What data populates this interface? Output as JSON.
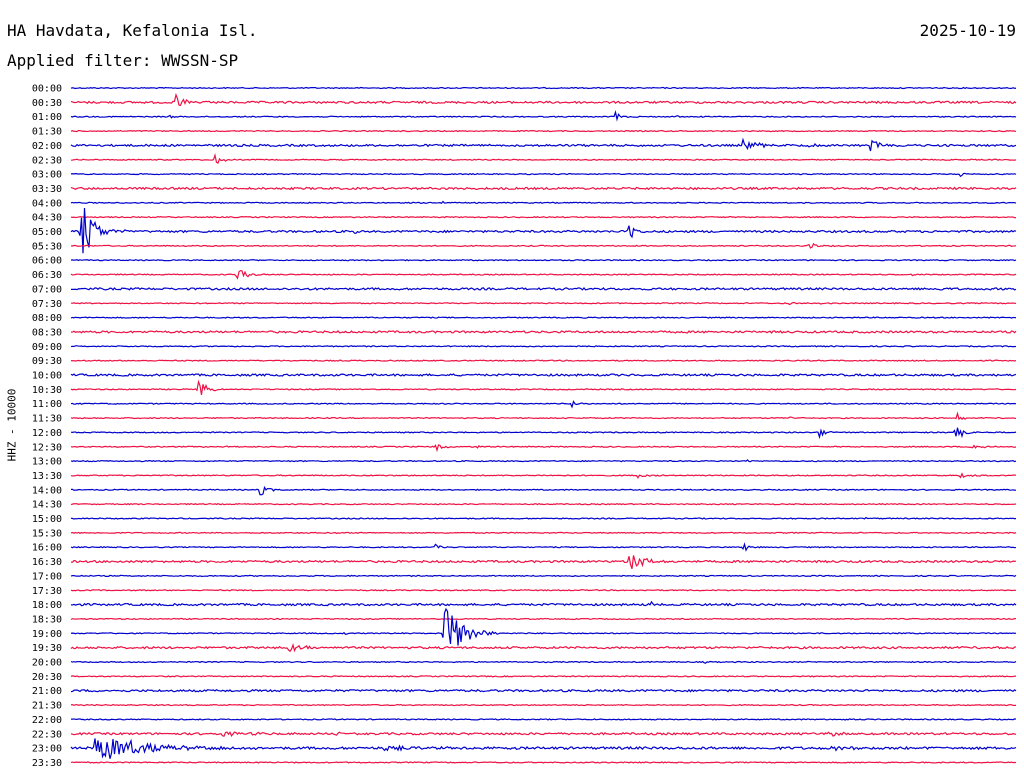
{
  "header": {
    "station": "HA Havdata, Kefalonia Isl.",
    "date": "2025-10-19",
    "filter_label": "Applied filter: WWSSN-SP"
  },
  "chart_data": {
    "type": "line",
    "title": "HA Havdata, Kefalonia Isl.",
    "subtitle": "Applied filter: WWSSN-SP",
    "date": "2025-10-19",
    "ylabel": "HHZ - 10000",
    "xlabel": "",
    "grid": false,
    "colors": {
      "blue": "#0000cc",
      "red": "#ee1144"
    },
    "series_colors": [
      "blue",
      "red"
    ],
    "row_interval_minutes": 30,
    "rows": [
      {
        "label": "00:00",
        "color": "blue",
        "noise": 0.5,
        "events": []
      },
      {
        "label": "00:30",
        "color": "red",
        "noise": 1.0,
        "events": [
          {
            "x": 0.11,
            "amp": 9,
            "dur": 0.01
          }
        ]
      },
      {
        "label": "01:00",
        "color": "blue",
        "noise": 0.5,
        "events": [
          {
            "x": 0.105,
            "amp": 4,
            "dur": 0.003
          },
          {
            "x": 0.575,
            "amp": 5,
            "dur": 0.006
          },
          {
            "x": 0.64,
            "amp": 2,
            "dur": 0.004
          }
        ]
      },
      {
        "label": "01:30",
        "color": "red",
        "noise": 0.5,
        "events": []
      },
      {
        "label": "02:00",
        "color": "blue",
        "noise": 1.0,
        "events": [
          {
            "x": 0.45,
            "amp": 2,
            "dur": 0.003
          },
          {
            "x": 0.71,
            "amp": 7,
            "dur": 0.012
          },
          {
            "x": 0.78,
            "amp": 3,
            "dur": 0.005
          },
          {
            "x": 0.846,
            "amp": 7,
            "dur": 0.009
          }
        ]
      },
      {
        "label": "02:30",
        "color": "red",
        "noise": 0.5,
        "events": [
          {
            "x": 0.152,
            "amp": 7,
            "dur": 0.006
          }
        ]
      },
      {
        "label": "03:00",
        "color": "blue",
        "noise": 0.5,
        "events": [
          {
            "x": 0.941,
            "amp": 4,
            "dur": 0.004
          }
        ]
      },
      {
        "label": "03:30",
        "color": "red",
        "noise": 1.0,
        "events": []
      },
      {
        "label": "04:00",
        "color": "blue",
        "noise": 0.5,
        "events": [
          {
            "x": 0.392,
            "amp": 2,
            "dur": 0.003
          }
        ]
      },
      {
        "label": "04:30",
        "color": "red",
        "noise": 0.5,
        "events": []
      },
      {
        "label": "05:00",
        "color": "blue",
        "noise": 1.0,
        "events": [
          {
            "x": 0.01,
            "amp": 40,
            "dur": 0.012
          },
          {
            "x": 0.59,
            "amp": 13,
            "dur": 0.006
          },
          {
            "x": 0.3,
            "amp": 2,
            "dur": 0.004
          }
        ]
      },
      {
        "label": "05:30",
        "color": "red",
        "noise": 0.5,
        "events": [
          {
            "x": 0.78,
            "amp": 4,
            "dur": 0.01
          }
        ]
      },
      {
        "label": "06:00",
        "color": "blue",
        "noise": 0.5,
        "events": []
      },
      {
        "label": "06:30",
        "color": "red",
        "noise": 0.5,
        "events": [
          {
            "x": 0.175,
            "amp": 7,
            "dur": 0.009
          },
          {
            "x": 0.89,
            "amp": 2,
            "dur": 0.003
          }
        ]
      },
      {
        "label": "07:00",
        "color": "blue",
        "noise": 1.0,
        "events": [
          {
            "x": 0.912,
            "amp": 4,
            "dur": 0.006
          }
        ]
      },
      {
        "label": "07:30",
        "color": "red",
        "noise": 0.5,
        "events": [
          {
            "x": 0.76,
            "amp": 2,
            "dur": 0.006
          },
          {
            "x": 0.79,
            "amp": 2,
            "dur": 0.004
          }
        ]
      },
      {
        "label": "08:00",
        "color": "blue",
        "noise": 0.5,
        "events": []
      },
      {
        "label": "08:30",
        "color": "red",
        "noise": 1.0,
        "events": []
      },
      {
        "label": "09:00",
        "color": "blue",
        "noise": 0.5,
        "events": []
      },
      {
        "label": "09:30",
        "color": "red",
        "noise": 0.5,
        "events": []
      },
      {
        "label": "10:00",
        "color": "blue",
        "noise": 1.0,
        "events": []
      },
      {
        "label": "10:30",
        "color": "red",
        "noise": 0.5,
        "events": [
          {
            "x": 0.134,
            "amp": 10,
            "dur": 0.01
          }
        ]
      },
      {
        "label": "11:00",
        "color": "blue",
        "noise": 0.5,
        "events": [
          {
            "x": 0.53,
            "amp": 4,
            "dur": 0.006
          }
        ]
      },
      {
        "label": "11:30",
        "color": "red",
        "noise": 0.5,
        "events": [
          {
            "x": 0.76,
            "amp": 2,
            "dur": 0.003
          },
          {
            "x": 0.938,
            "amp": 7,
            "dur": 0.004
          }
        ]
      },
      {
        "label": "12:00",
        "color": "blue",
        "noise": 0.5,
        "events": [
          {
            "x": 0.79,
            "amp": 7,
            "dur": 0.006
          },
          {
            "x": 0.935,
            "amp": 9,
            "dur": 0.008
          }
        ]
      },
      {
        "label": "12:30",
        "color": "red",
        "noise": 0.5,
        "events": [
          {
            "x": 0.163,
            "amp": 3,
            "dur": 0.004
          },
          {
            "x": 0.386,
            "amp": 6,
            "dur": 0.006
          },
          {
            "x": 0.43,
            "amp": 2,
            "dur": 0.003
          },
          {
            "x": 0.953,
            "amp": 4,
            "dur": 0.008
          }
        ]
      },
      {
        "label": "13:00",
        "color": "blue",
        "noise": 0.5,
        "events": [
          {
            "x": 0.715,
            "amp": 2,
            "dur": 0.003
          }
        ]
      },
      {
        "label": "13:30",
        "color": "red",
        "noise": 0.5,
        "events": [
          {
            "x": 0.6,
            "amp": 2,
            "dur": 0.01
          },
          {
            "x": 0.94,
            "amp": 2,
            "dur": 0.012
          }
        ]
      },
      {
        "label": "14:00",
        "color": "blue",
        "noise": 0.5,
        "events": [
          {
            "x": 0.2,
            "amp": 6,
            "dur": 0.007
          }
        ]
      },
      {
        "label": "14:30",
        "color": "red",
        "noise": 0.5,
        "events": []
      },
      {
        "label": "15:00",
        "color": "blue",
        "noise": 0.5,
        "events": [
          {
            "x": 0.84,
            "amp": 2,
            "dur": 0.003
          }
        ]
      },
      {
        "label": "15:30",
        "color": "red",
        "noise": 0.5,
        "events": [
          {
            "x": 0.28,
            "amp": 2,
            "dur": 0.004
          }
        ]
      },
      {
        "label": "16:00",
        "color": "blue",
        "noise": 0.5,
        "events": [
          {
            "x": 0.385,
            "amp": 3,
            "dur": 0.008
          },
          {
            "x": 0.71,
            "amp": 7,
            "dur": 0.006
          }
        ]
      },
      {
        "label": "16:30",
        "color": "red",
        "noise": 1.0,
        "events": [
          {
            "x": 0.59,
            "amp": 11,
            "dur": 0.014
          }
        ]
      },
      {
        "label": "17:00",
        "color": "blue",
        "noise": 0.5,
        "events": []
      },
      {
        "label": "17:30",
        "color": "red",
        "noise": 0.5,
        "events": []
      },
      {
        "label": "18:00",
        "color": "blue",
        "noise": 1.0,
        "events": [
          {
            "x": 0.61,
            "amp": 4,
            "dur": 0.006
          }
        ]
      },
      {
        "label": "18:30",
        "color": "red",
        "noise": 0.5,
        "events": []
      },
      {
        "label": "19:00",
        "color": "blue",
        "noise": 0.5,
        "events": [
          {
            "x": 0.394,
            "amp": 38,
            "dur": 0.016
          },
          {
            "x": 0.29,
            "amp": 2,
            "dur": 0.003
          },
          {
            "x": 0.35,
            "amp": 2,
            "dur": 0.004
          }
        ]
      },
      {
        "label": "19:30",
        "color": "red",
        "noise": 1.0,
        "events": [
          {
            "x": 0.23,
            "amp": 5,
            "dur": 0.012
          }
        ]
      },
      {
        "label": "20:00",
        "color": "blue",
        "noise": 0.5,
        "events": [
          {
            "x": 0.67,
            "amp": 2,
            "dur": 0.003
          }
        ]
      },
      {
        "label": "20:30",
        "color": "red",
        "noise": 0.5,
        "events": []
      },
      {
        "label": "21:00",
        "color": "blue",
        "noise": 1.0,
        "events": []
      },
      {
        "label": "21:30",
        "color": "red",
        "noise": 0.5,
        "events": []
      },
      {
        "label": "22:00",
        "color": "blue",
        "noise": 0.5,
        "events": [
          {
            "x": 0.815,
            "amp": 2,
            "dur": 0.004
          }
        ]
      },
      {
        "label": "22:30",
        "color": "red",
        "noise": 1.0,
        "events": [
          {
            "x": 0.16,
            "amp": 2,
            "dur": 0.03
          },
          {
            "x": 0.28,
            "amp": 2,
            "dur": 0.01
          },
          {
            "x": 0.8,
            "amp": 2,
            "dur": 0.02
          }
        ]
      },
      {
        "label": "23:00",
        "color": "blue",
        "noise": 1.2,
        "events": [
          {
            "x": 0.025,
            "amp": 15,
            "dur": 0.045
          },
          {
            "x": 0.33,
            "amp": 2,
            "dur": 0.03
          },
          {
            "x": 0.8,
            "amp": 2,
            "dur": 0.03
          }
        ]
      },
      {
        "label": "23:30",
        "color": "red",
        "noise": 0.5,
        "events": []
      }
    ]
  }
}
